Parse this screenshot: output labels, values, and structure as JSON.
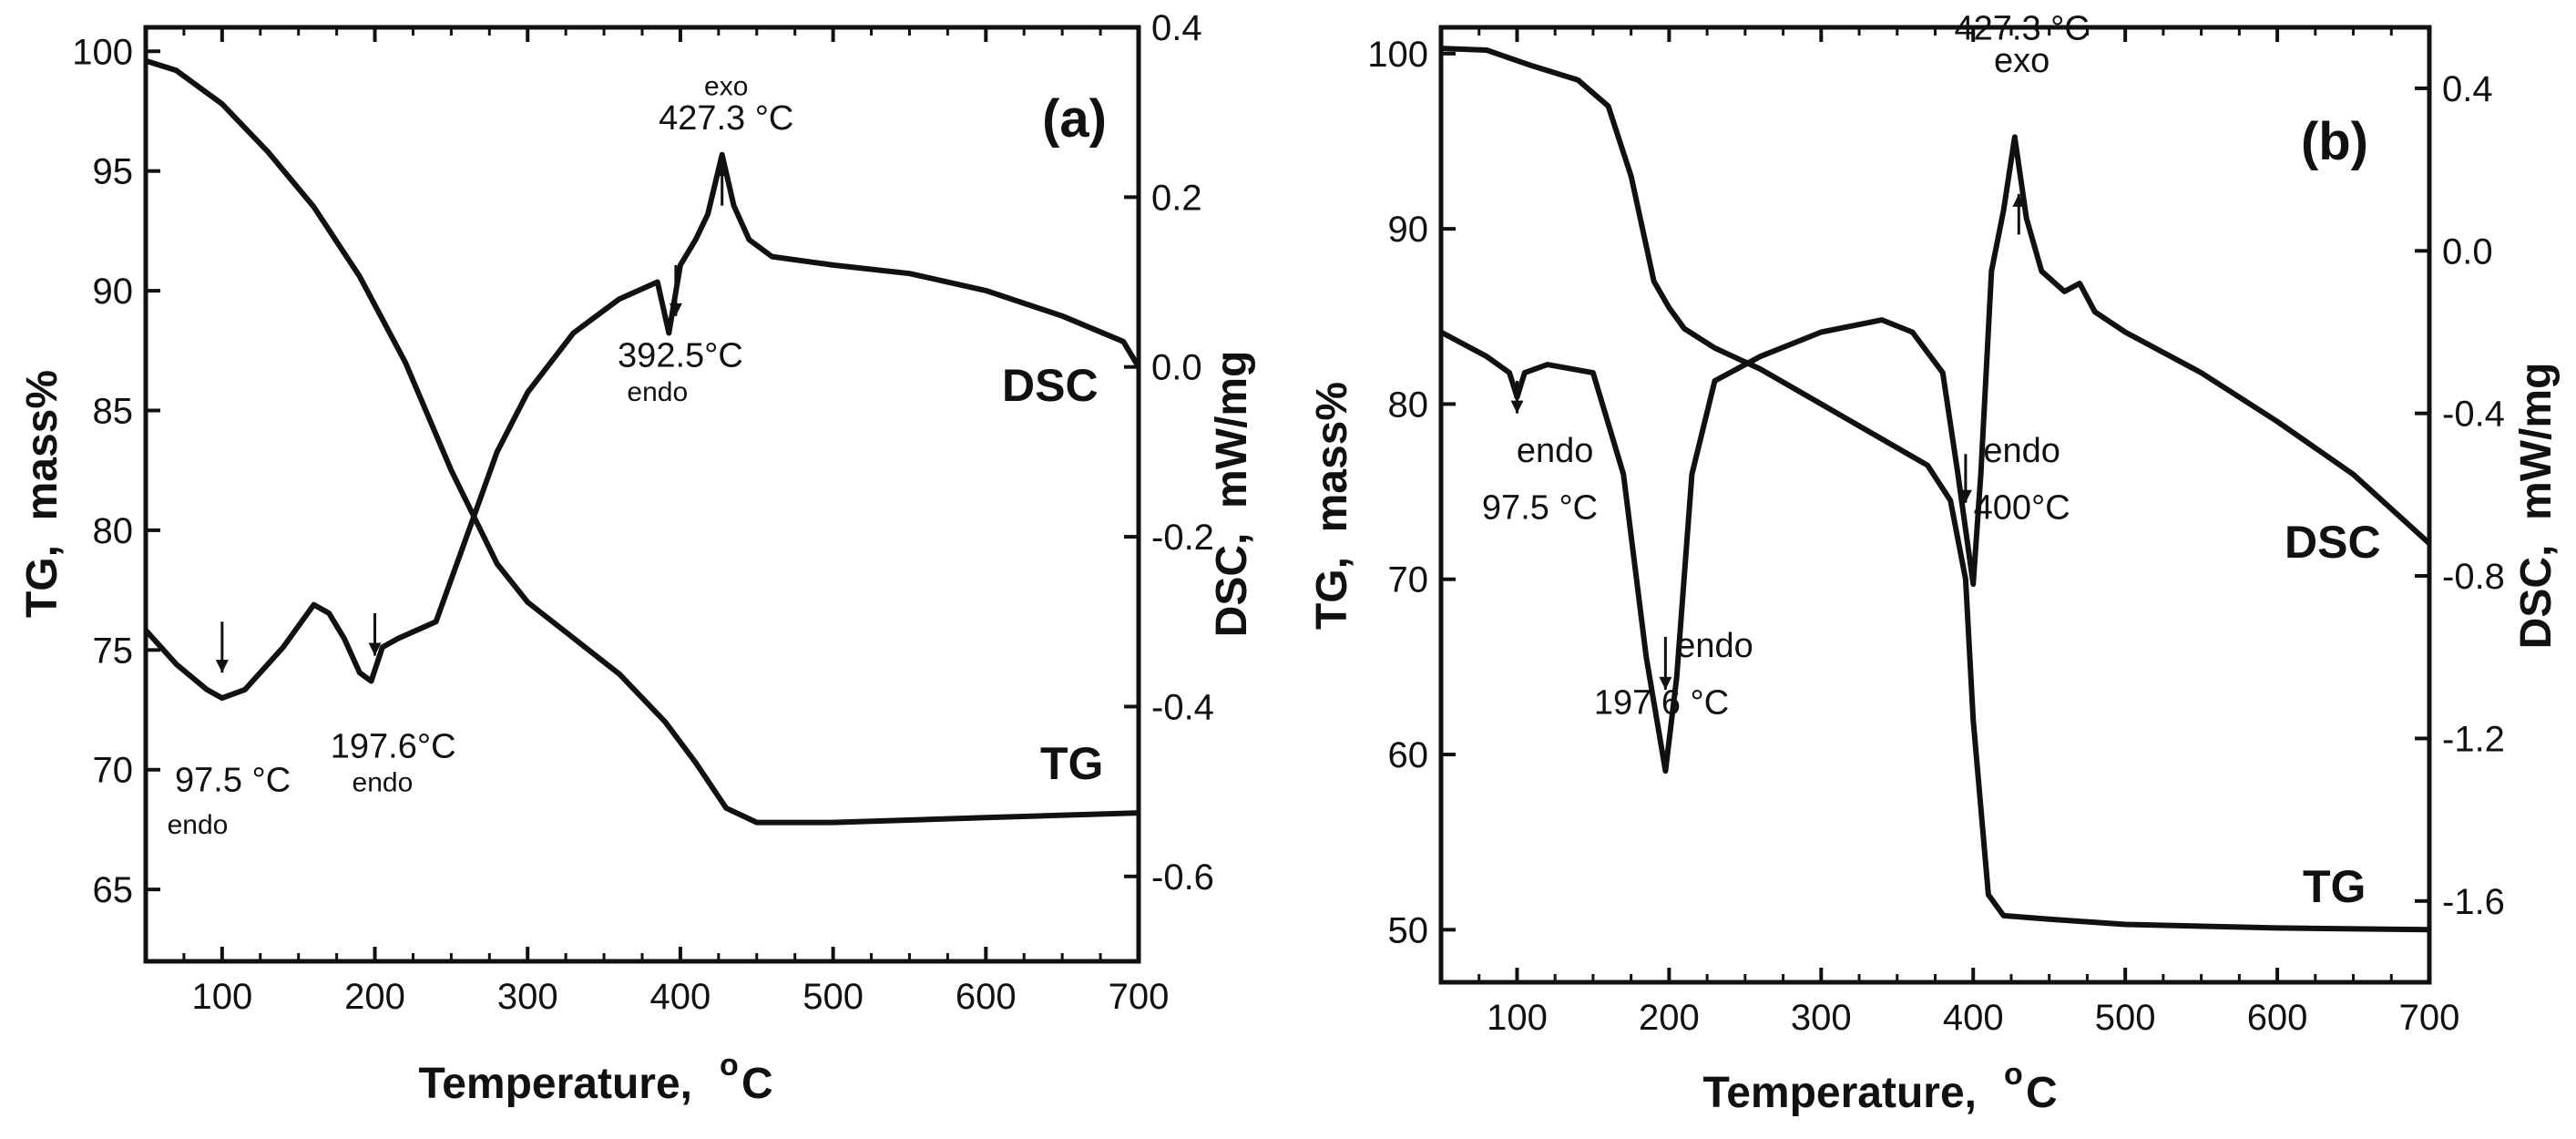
{
  "colors": {
    "ink": "#111111",
    "background": "#ffffff"
  },
  "chart_data": [
    {
      "type": "line",
      "panel_label": "(a)",
      "xlabel": "Temperature,",
      "xlabel_unit": "C",
      "xlabel_sup": "o",
      "ylabel_left": "TG,  mass%",
      "ylabel_right": "DSC,  mW/mg",
      "xlim": [
        50,
        700
      ],
      "ylim_left": [
        62,
        101
      ],
      "ylim_right": [
        -0.7,
        0.4
      ],
      "x_ticks": [
        "100",
        "200",
        "300",
        "400",
        "500",
        "600",
        "700"
      ],
      "y_left_ticks": [
        "65",
        "70",
        "75",
        "80",
        "85",
        "90",
        "95",
        "100"
      ],
      "y_right_ticks": [
        "-0.6",
        "-0.4",
        "-0.2",
        "0.0",
        "0.2",
        "0.4"
      ],
      "curve_labels": {
        "dsc": "DSC",
        "tg": "TG"
      },
      "series": [
        {
          "name": "TG",
          "axis": "left",
          "x": [
            50,
            70,
            100,
            130,
            160,
            190,
            220,
            250,
            280,
            300,
            330,
            360,
            390,
            410,
            430,
            450,
            500,
            600,
            700
          ],
          "y": [
            99.6,
            99.2,
            97.8,
            95.8,
            93.5,
            90.6,
            87,
            82.5,
            78.6,
            77,
            75.5,
            74,
            72,
            70.3,
            68.4,
            67.8,
            67.8,
            68.0,
            68.2
          ]
        },
        {
          "name": "DSC",
          "axis": "right",
          "x": [
            50,
            70,
            90,
            100,
            115,
            140,
            160,
            170,
            180,
            190,
            197.6,
            205,
            215,
            240,
            260,
            280,
            300,
            330,
            360,
            385,
            392.5,
            400,
            410,
            418,
            427.3,
            435,
            445,
            460,
            500,
            550,
            600,
            650,
            690,
            700
          ],
          "y": [
            -0.31,
            -0.35,
            -0.38,
            -0.39,
            -0.38,
            -0.33,
            -0.28,
            -0.29,
            -0.32,
            -0.36,
            -0.37,
            -0.33,
            -0.32,
            -0.3,
            -0.2,
            -0.1,
            -0.03,
            0.04,
            0.08,
            0.1,
            0.04,
            0.12,
            0.15,
            0.18,
            0.25,
            0.19,
            0.15,
            0.13,
            0.12,
            0.11,
            0.09,
            0.06,
            0.03,
            0.0
          ]
        }
      ],
      "annotations": [
        {
          "id": "a-exo-word",
          "text": "exo",
          "x": 430,
          "y": 0.32,
          "axis": "right",
          "size": "s"
        },
        {
          "id": "a-exo-temp",
          "text": "427.3 °C",
          "x": 430,
          "y": 0.28,
          "axis": "right"
        },
        {
          "id": "a-endo392-temp",
          "text": "392.5°C",
          "x": 400,
          "y": 0.0,
          "axis": "right"
        },
        {
          "id": "a-endo392-word",
          "text": "endo",
          "x": 385,
          "y": -0.04,
          "axis": "right",
          "size": "s"
        },
        {
          "id": "a-endo197-temp",
          "text": "197.6°C",
          "x": 212,
          "y": -0.46,
          "axis": "right"
        },
        {
          "id": "a-endo197-word",
          "text": "endo",
          "x": 205,
          "y": -0.5,
          "axis": "right",
          "size": "s"
        },
        {
          "id": "a-endo97-temp",
          "text": "97.5 °C",
          "x": 107,
          "y": -0.5,
          "axis": "right"
        },
        {
          "id": "a-endo97-word",
          "text": "endo",
          "x": 84,
          "y": -0.55,
          "axis": "right",
          "size": "s"
        }
      ],
      "arrows": [
        {
          "x": 100,
          "from": -0.3,
          "to": -0.36,
          "axis": "right"
        },
        {
          "x": 200,
          "from": -0.29,
          "to": -0.34,
          "axis": "right"
        },
        {
          "x": 397,
          "from": 0.12,
          "to": 0.06,
          "axis": "right"
        },
        {
          "x": 427.3,
          "from": 0.19,
          "to": 0.24,
          "axis": "right"
        }
      ]
    },
    {
      "type": "line",
      "panel_label": "(b)",
      "xlabel": "Temperature,",
      "xlabel_unit": "C",
      "xlabel_sup": "o",
      "ylabel_left": "TG,  mass%",
      "ylabel_right": "DSC,  mW/mg",
      "xlim": [
        50,
        700
      ],
      "ylim_left": [
        47,
        101.5
      ],
      "ylim_right": [
        -1.8,
        0.55
      ],
      "x_ticks": [
        "100",
        "200",
        "300",
        "400",
        "500",
        "600",
        "700"
      ],
      "y_left_ticks": [
        "50",
        "60",
        "70",
        "80",
        "90",
        "100"
      ],
      "y_right_ticks": [
        "-1.6",
        "-1.2",
        "-0.8",
        "-0.4",
        "0.0",
        "0.4"
      ],
      "curve_labels": {
        "dsc": "DSC",
        "tg": "TG"
      },
      "series": [
        {
          "name": "TG",
          "axis": "left",
          "x": [
            50,
            80,
            110,
            140,
            160,
            175,
            190,
            200,
            210,
            230,
            260,
            300,
            340,
            370,
            385,
            395,
            400,
            410,
            420,
            450,
            500,
            600,
            700
          ],
          "y": [
            100.3,
            100.2,
            99.3,
            98.5,
            97,
            93,
            87,
            85.5,
            84.3,
            83.2,
            82,
            80,
            78,
            76.5,
            74.5,
            70,
            62,
            52,
            50.8,
            50.6,
            50.3,
            50.1,
            50.0
          ]
        },
        {
          "name": "DSC",
          "axis": "right",
          "x": [
            50,
            80,
            95,
            100,
            105,
            120,
            150,
            170,
            185,
            197.6,
            205,
            215,
            230,
            260,
            300,
            340,
            360,
            380,
            390,
            400,
            405,
            412,
            420,
            427.3,
            435,
            445,
            460,
            470,
            480,
            500,
            550,
            600,
            650,
            700
          ],
          "y": [
            -0.2,
            -0.26,
            -0.3,
            -0.36,
            -0.3,
            -0.28,
            -0.3,
            -0.55,
            -1.0,
            -1.28,
            -1.05,
            -0.55,
            -0.32,
            -0.26,
            -0.2,
            -0.17,
            -0.2,
            -0.3,
            -0.55,
            -0.82,
            -0.55,
            -0.05,
            0.1,
            0.28,
            0.08,
            -0.05,
            -0.1,
            -0.08,
            -0.15,
            -0.2,
            -0.3,
            -0.42,
            -0.55,
            -0.72
          ]
        }
      ],
      "annotations": [
        {
          "id": "b-exo-temp",
          "text": "427.3 °C",
          "x": 432,
          "y": 0.52,
          "axis": "right"
        },
        {
          "id": "b-exo-word",
          "text": "exo",
          "x": 432,
          "y": 0.44,
          "axis": "right"
        },
        {
          "id": "b-endo97-word",
          "text": "endo",
          "x": 125,
          "y": -0.52,
          "axis": "right"
        },
        {
          "id": "b-endo97-temp",
          "text": "97.5 °C",
          "x": 115,
          "y": -0.66,
          "axis": "right"
        },
        {
          "id": "b-endo197-word",
          "text": "endo",
          "x": 230,
          "y": -1.0,
          "axis": "right"
        },
        {
          "id": "b-endo197-temp",
          "text": "197.6 °C",
          "x": 195,
          "y": -1.14,
          "axis": "right"
        },
        {
          "id": "b-endo400-word",
          "text": "endo",
          "x": 432,
          "y": -0.52,
          "axis": "right"
        },
        {
          "id": "b-endo400-temp",
          "text": "400°C",
          "x": 432,
          "y": -0.66,
          "axis": "right"
        }
      ],
      "arrows": [
        {
          "x": 100,
          "from": -0.32,
          "to": -0.4,
          "axis": "right"
        },
        {
          "x": 197.6,
          "from": -0.95,
          "to": -1.08,
          "axis": "right"
        },
        {
          "x": 395,
          "from": -0.5,
          "to": -0.62,
          "axis": "right"
        },
        {
          "x": 430,
          "from": 0.04,
          "to": 0.14,
          "axis": "right"
        }
      ]
    }
  ]
}
